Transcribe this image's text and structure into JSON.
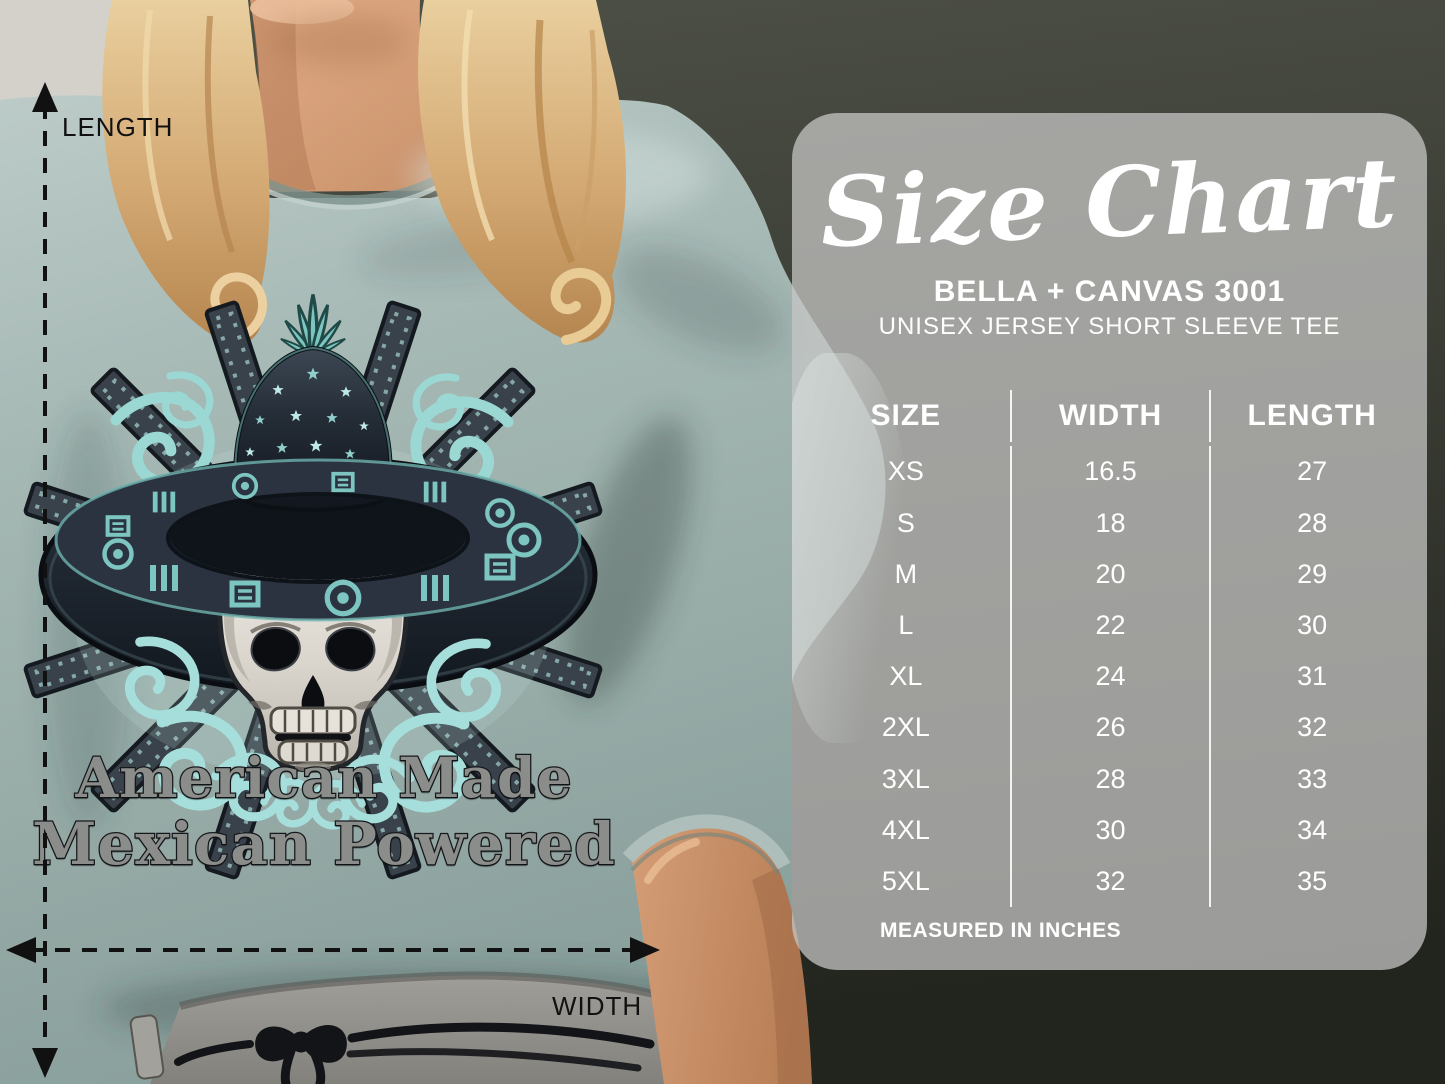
{
  "colors": {
    "accent_teal": "#7cc5c1",
    "arrow_color": "#111111",
    "panel_text": "#ffffff",
    "design_text": "#8b8d8a",
    "tee_fabric": "#a4b8b4",
    "backdrop_dark": "#2a2c25"
  },
  "measure": {
    "length_label": "LENGTH",
    "width_label": "WIDTH"
  },
  "shirt": {
    "design_line1": "American Made",
    "design_line2": "Mexican Powered"
  },
  "panel": {
    "title": "Size Chart",
    "brand_line": "BELLA + CANVAS 3001",
    "product_line": "UNISEX JERSEY SHORT SLEEVE TEE",
    "footnote": "MEASURED IN INCHES",
    "table": {
      "headers": [
        "SIZE",
        "WIDTH",
        "LENGTH"
      ],
      "rows": [
        [
          "XS",
          "16.5",
          "27"
        ],
        [
          "S",
          "18",
          "28"
        ],
        [
          "M",
          "20",
          "29"
        ],
        [
          "L",
          "22",
          "30"
        ],
        [
          "XL",
          "24",
          "31"
        ],
        [
          "2XL",
          "26",
          "32"
        ],
        [
          "3XL",
          "28",
          "33"
        ],
        [
          "4XL",
          "30",
          "34"
        ],
        [
          "5XL",
          "32",
          "35"
        ]
      ]
    }
  },
  "chart_data": {
    "type": "table",
    "title": "Size Chart",
    "subtitle": "BELLA + CANVAS 3001 — UNISEX JERSEY SHORT SLEEVE TEE",
    "columns": [
      "SIZE",
      "WIDTH",
      "LENGTH"
    ],
    "rows": [
      [
        "XS",
        16.5,
        27
      ],
      [
        "S",
        18,
        28
      ],
      [
        "M",
        20,
        29
      ],
      [
        "L",
        22,
        30
      ],
      [
        "XL",
        24,
        31
      ],
      [
        "2XL",
        26,
        32
      ],
      [
        "3XL",
        28,
        33
      ],
      [
        "4XL",
        30,
        34
      ],
      [
        "5XL",
        32,
        35
      ]
    ],
    "units": "inches",
    "notes": "MEASURED IN INCHES"
  }
}
